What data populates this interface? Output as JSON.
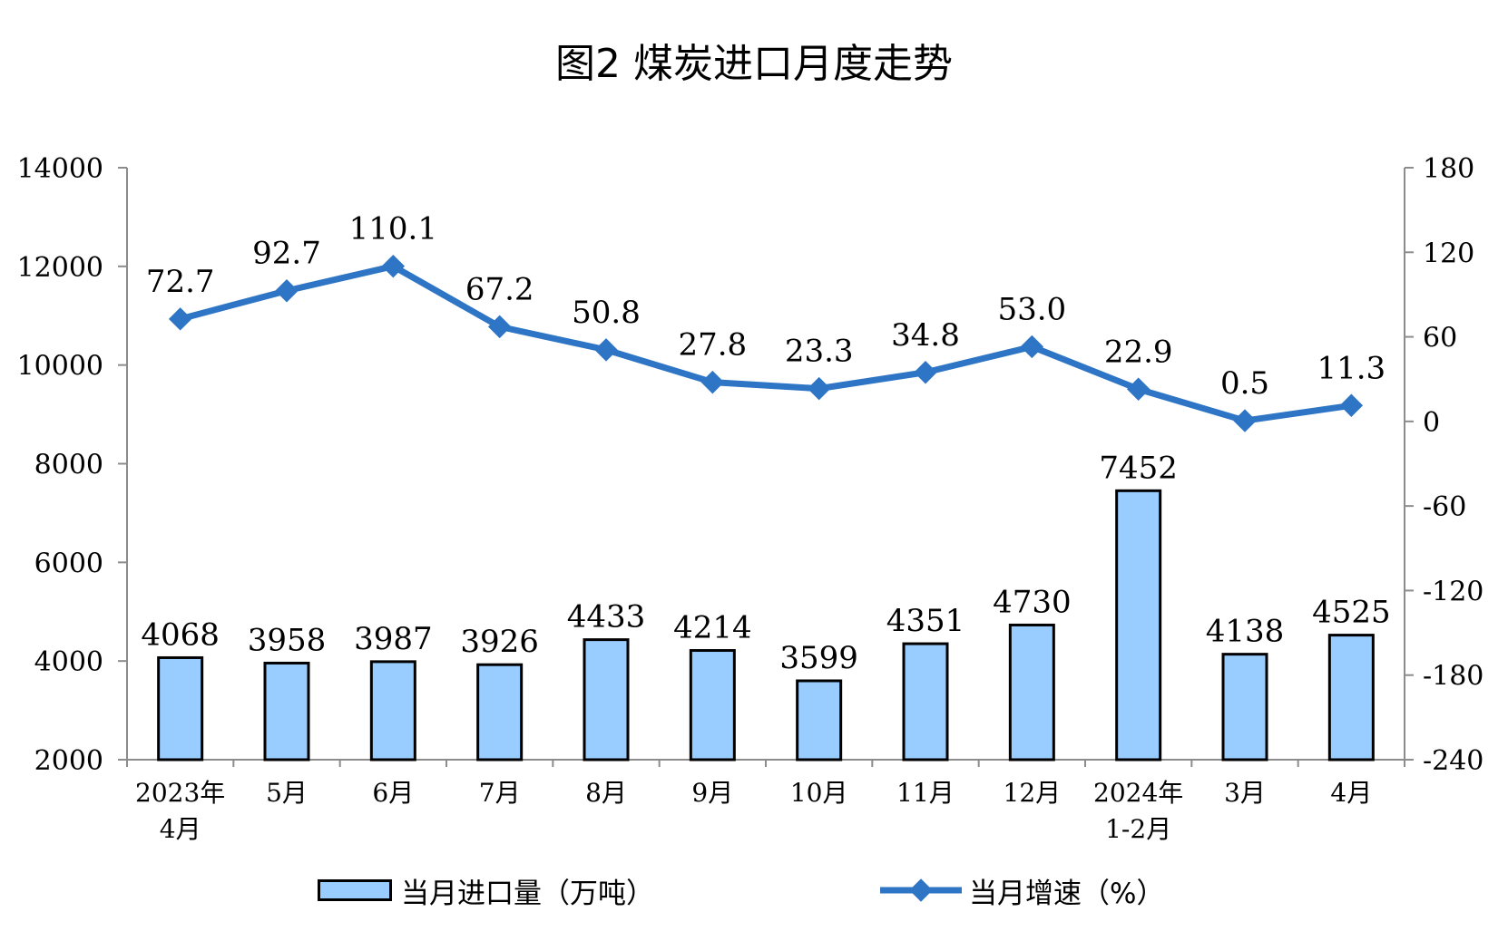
{
  "chart_data": {
    "type": "bar+line",
    "title": "图2 煤炭进口月度走势",
    "categories": [
      [
        "2023年",
        "4月"
      ],
      [
        "5月"
      ],
      [
        "6月"
      ],
      [
        "7月"
      ],
      [
        "8月"
      ],
      [
        "9月"
      ],
      [
        "10月"
      ],
      [
        "11月"
      ],
      [
        "12月"
      ],
      [
        "2024年",
        "1-2月"
      ],
      [
        "3月"
      ],
      [
        "4月"
      ]
    ],
    "series": [
      {
        "name": "当月进口量（万吨）",
        "kind": "bar",
        "axis": "left",
        "color": "#99ccff",
        "values": [
          4068,
          3958,
          3987,
          3926,
          4433,
          4214,
          3599,
          4351,
          4730,
          7452,
          4138,
          4525
        ]
      },
      {
        "name": "当月增速（%）",
        "kind": "line",
        "axis": "right",
        "color": "#2e75c5",
        "values": [
          72.7,
          92.7,
          110.1,
          67.2,
          50.8,
          27.8,
          23.3,
          34.8,
          53.0,
          22.9,
          0.5,
          11.3
        ],
        "labels": [
          "72.7",
          "92.7",
          "110.1",
          "67.2",
          "50.8",
          "27.8",
          "23.3",
          "34.8",
          "53.0",
          "22.9",
          "0.5",
          "11.3"
        ]
      }
    ],
    "y_left": {
      "min": 2000,
      "max": 14000,
      "ticks": [
        2000,
        4000,
        6000,
        8000,
        10000,
        12000,
        14000
      ]
    },
    "y_right": {
      "min": -240,
      "max": 180,
      "ticks": [
        -240,
        -180,
        -120,
        -60,
        0,
        60,
        120,
        180
      ]
    },
    "grid": false,
    "legend_position": "bottom"
  }
}
